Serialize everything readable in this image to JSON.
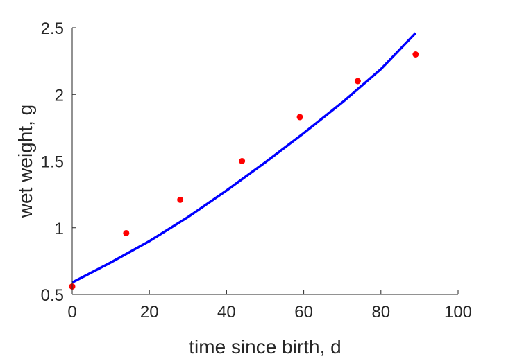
{
  "chart_data": {
    "type": "scatter",
    "xlabel": "time since birth, d",
    "ylabel": "wet weight, g",
    "xlim": [
      0,
      100
    ],
    "ylim": [
      0.5,
      2.5
    ],
    "xticks": [
      0,
      20,
      40,
      60,
      80,
      100
    ],
    "yticks": [
      0.5,
      1,
      1.5,
      2,
      2.5
    ],
    "xtick_labels": [
      "0",
      "20",
      "40",
      "60",
      "80",
      "100"
    ],
    "ytick_labels": [
      "0.5",
      "1",
      "1.5",
      "2",
      "2.5"
    ],
    "grid": false,
    "series": [
      {
        "kind": "scatter",
        "color": "#ff0000",
        "x": [
          0,
          14,
          28,
          44,
          59,
          74,
          89
        ],
        "y": [
          0.56,
          0.96,
          1.21,
          1.5,
          1.83,
          2.1,
          2.3
        ]
      },
      {
        "kind": "line",
        "color": "#0000ff",
        "x": [
          0,
          10,
          20,
          30,
          40,
          50,
          60,
          70,
          80,
          89
        ],
        "y": [
          0.59,
          0.74,
          0.9,
          1.08,
          1.28,
          1.49,
          1.71,
          1.94,
          2.19,
          2.46
        ]
      }
    ]
  }
}
